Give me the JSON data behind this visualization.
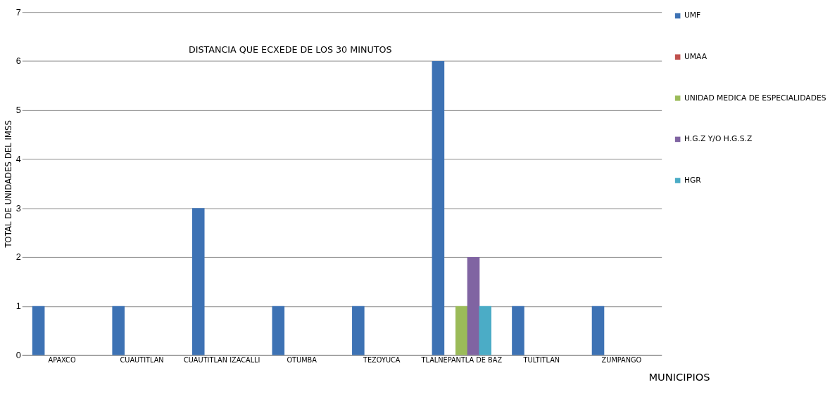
{
  "chart_data": {
    "type": "bar",
    "categories": [
      "APAXCO",
      "CUAUTITLAN",
      "CUAUTITLAN IZACALLI",
      "OTUMBA",
      "TEZOYUCA",
      "TLALNEPANTLA DE BAZ",
      "TULTITLAN",
      "ZUMPANGO"
    ],
    "series": [
      {
        "name": "UMF",
        "color": "#3d72b4",
        "values": [
          1,
          1,
          3,
          1,
          1,
          6,
          1,
          1
        ]
      },
      {
        "name": "UMAA",
        "color": "#c0504d",
        "values": [
          null,
          null,
          null,
          null,
          null,
          null,
          null,
          null
        ]
      },
      {
        "name": "UNIDAD MEDICA DE ESPECIALIDADES",
        "color": "#9bbb59",
        "values": [
          null,
          null,
          null,
          null,
          null,
          1,
          null,
          null
        ]
      },
      {
        "name": "H.G.Z Y/O H.G.S.Z",
        "color": "#8064a2",
        "values": [
          null,
          null,
          null,
          null,
          null,
          2,
          null,
          null
        ]
      },
      {
        "name": "HGR",
        "color": "#4bacc6",
        "values": [
          null,
          null,
          null,
          null,
          null,
          1,
          null,
          null
        ]
      }
    ],
    "xlabel": "MUNICIPIOS",
    "ylabel": "TOTAL DE UNIDADES DEL IMSS",
    "ylim": [
      0,
      7
    ],
    "yticks": [
      0,
      1,
      2,
      3,
      4,
      5,
      6,
      7
    ],
    "grid": "y",
    "legend": "right",
    "annotations": [
      "DISTANCIA QUE ECXEDE DE LOS 30 MINUTOS"
    ]
  }
}
